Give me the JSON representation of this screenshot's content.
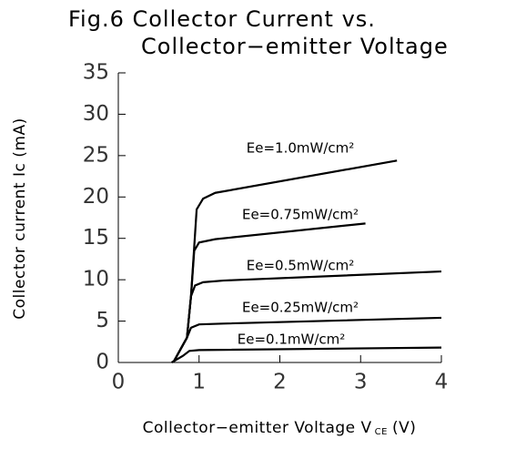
{
  "chart_data": {
    "type": "line",
    "title": [
      "Fig.6 Collector Current vs.",
      "Collector−emitter Voltage"
    ],
    "x_label": "Collector−emitter Voltage V",
    "x_label_subscript": "CE",
    "x_label_unit": "(V)",
    "y_label": "Collector current Ic (mA)",
    "xlim": [
      0,
      4
    ],
    "xticks": [
      0,
      1,
      2,
      3,
      4
    ],
    "ylim": [
      0,
      35
    ],
    "yticks": [
      0,
      5,
      10,
      15,
      20,
      25,
      30,
      35
    ],
    "grid": false,
    "series": [
      {
        "name": "Ee=1.0mW/cm²",
        "color": "#000000",
        "x": [
          0.68,
          0.85,
          0.9,
          0.94,
          0.97,
          1.05,
          1.2,
          3.45
        ],
        "values": [
          0,
          3,
          8,
          14,
          18.5,
          19.8,
          20.5,
          24.4
        ]
      },
      {
        "name": "Ee=0.75mW/cm²",
        "color": "#000000",
        "x": [
          0.68,
          0.85,
          0.9,
          0.94,
          1.0,
          1.2,
          3.06
        ],
        "values": [
          0,
          3,
          8,
          13.5,
          14.5,
          14.9,
          16.8
        ]
      },
      {
        "name": "Ee=0.5mW/cm²",
        "color": "#000000",
        "x": [
          0.68,
          0.85,
          0.9,
          0.95,
          1.05,
          1.3,
          4
        ],
        "values": [
          0,
          3,
          8,
          9.3,
          9.7,
          9.9,
          11
        ]
      },
      {
        "name": "Ee=0.25mW/cm²",
        "color": "#000000",
        "x": [
          0.68,
          0.85,
          0.9,
          1.0,
          1.3,
          4
        ],
        "values": [
          0,
          3,
          4.2,
          4.6,
          4.7,
          5.4
        ]
      },
      {
        "name": "Ee=0.1mW/cm²",
        "color": "#000000",
        "x": [
          0.66,
          0.8,
          0.88,
          1.0,
          4
        ],
        "values": [
          0,
          0.8,
          1.4,
          1.5,
          1.8
        ]
      }
    ]
  }
}
